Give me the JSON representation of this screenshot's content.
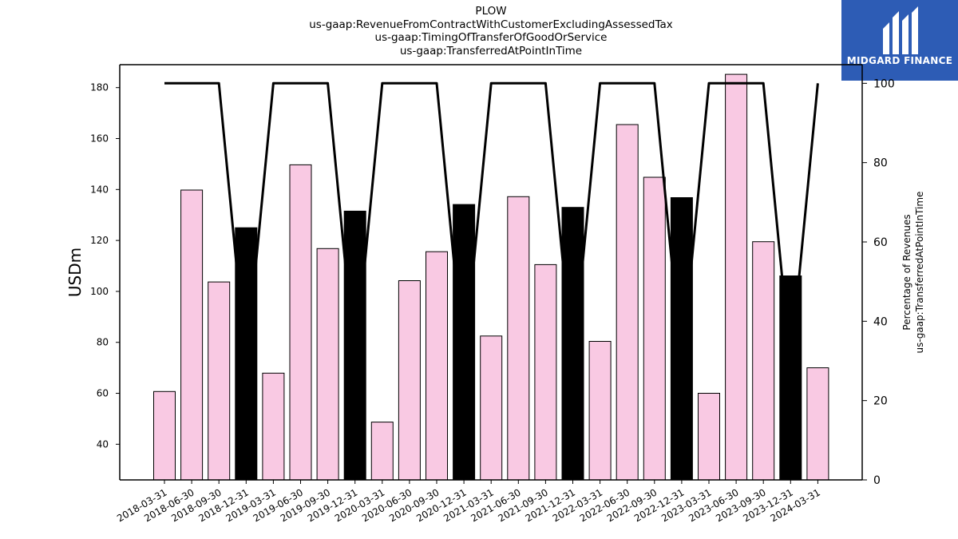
{
  "chart_data": {
    "type": "bar",
    "title_lines": [
      "PLOW",
      "us-gaap:RevenueFromContractWithCustomerExcludingAssessedTax",
      "us-gaap:TimingOfTransferOfGoodOrService",
      "us-gaap:TransferredAtPointInTime"
    ],
    "ylabel": "USDm",
    "y2label_lines": [
      "Percentage of Revenues",
      "us-gaap:TransferredAtPointInTime"
    ],
    "ylim": [
      26,
      189
    ],
    "y2lim": [
      0,
      104.7
    ],
    "yticks": [
      40,
      60,
      80,
      100,
      120,
      140,
      160,
      180
    ],
    "y2ticks": [
      0,
      20,
      40,
      60,
      80,
      100
    ],
    "categories": [
      "2018-03-31",
      "2018-06-30",
      "2018-09-30",
      "2018-12-31",
      "2019-03-31",
      "2019-06-30",
      "2019-09-30",
      "2019-12-31",
      "2020-03-31",
      "2020-06-30",
      "2020-09-30",
      "2020-12-31",
      "2021-03-31",
      "2021-06-30",
      "2021-09-30",
      "2021-12-31",
      "2022-03-31",
      "2022-06-30",
      "2022-09-30",
      "2022-12-31",
      "2023-03-31",
      "2023-06-30",
      "2023-09-30",
      "2023-12-31",
      "2024-03-31"
    ],
    "series": [
      {
        "type": "bar",
        "values": [
          60.7,
          139.8,
          103.7,
          125.0,
          67.9,
          149.7,
          116.8,
          131.5,
          48.7,
          104.2,
          115.6,
          134.1,
          82.5,
          137.2,
          110.5,
          133.0,
          80.4,
          165.5,
          144.8,
          136.8,
          60.0,
          185.2,
          119.5,
          106.1,
          70.0
        ],
        "highlight_color": "#000000",
        "base_color": "#f9c9e3",
        "highlight_indices": [
          3,
          7,
          11,
          15,
          19,
          23
        ]
      },
      {
        "type": "line",
        "axis": "right",
        "values": [
          100,
          100,
          100,
          29,
          100,
          100,
          100,
          29,
          100,
          100,
          100,
          29,
          100,
          100,
          100,
          29,
          100,
          100,
          100,
          29,
          100,
          100,
          100,
          29,
          100
        ],
        "color": "#000000"
      }
    ],
    "grid": false
  },
  "logo": {
    "text": "MIDGARD FINANCE",
    "bg_color": "#2d5cb5"
  }
}
